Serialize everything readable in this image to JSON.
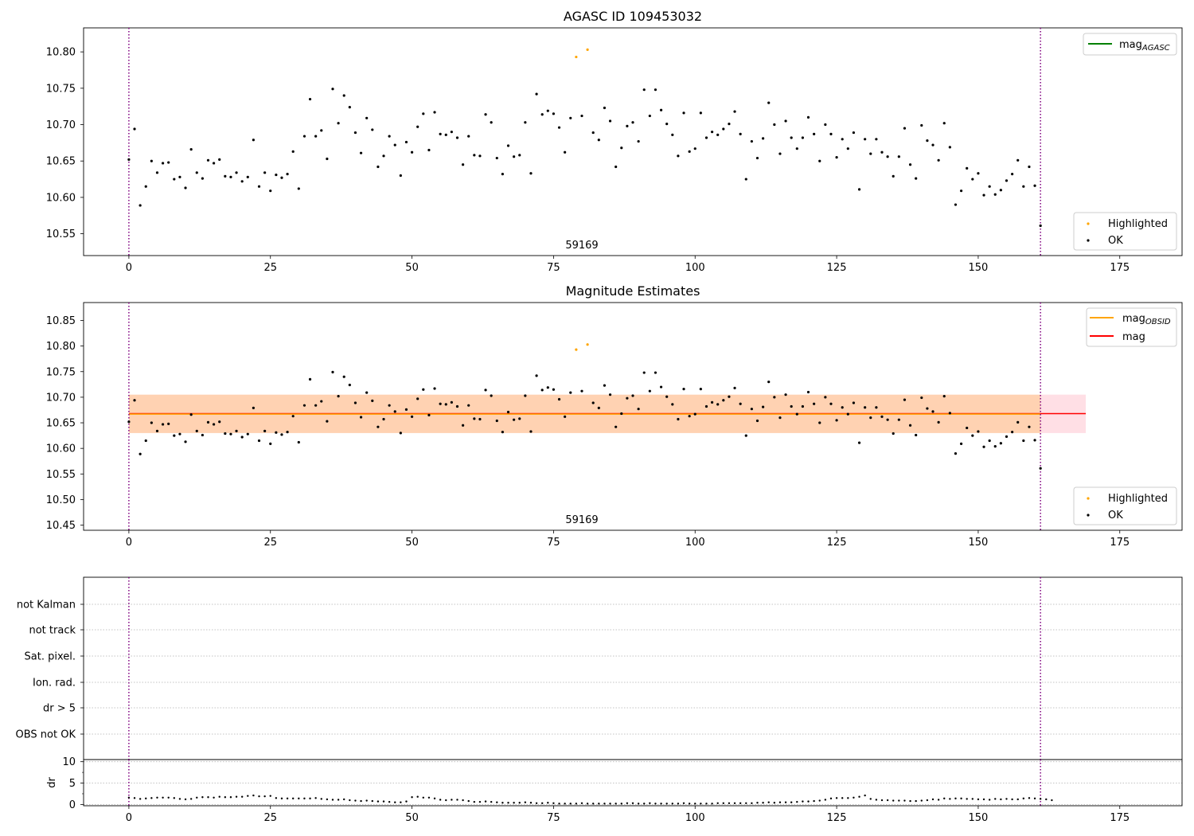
{
  "chart_data": [
    {
      "type": "scatter",
      "title": "AGASC ID 109453032",
      "annotation": "59169",
      "x_ticks": [
        0,
        25,
        50,
        75,
        100,
        125,
        150,
        175
      ],
      "y_ticks": [
        "10.55",
        "10.60",
        "10.65",
        "10.70",
        "10.75",
        "10.80"
      ],
      "xlim": [
        -8,
        186
      ],
      "ylim": [
        10.52,
        10.833
      ],
      "vlines": [
        0,
        161
      ],
      "legend_upper": "mag_AGASC",
      "legend_lower": [
        "Highlighted",
        "OK"
      ],
      "series": [
        {
          "name": "OK",
          "values": [
            10.652,
            10.694,
            10.589,
            10.615,
            10.65,
            10.634,
            10.647,
            10.648,
            10.625,
            10.628,
            10.613,
            10.666,
            10.634,
            10.626,
            10.651,
            10.647,
            10.652,
            10.629,
            10.628,
            10.634,
            10.622,
            10.628,
            10.679,
            10.615,
            10.634,
            10.609,
            10.631,
            10.627,
            10.632,
            10.663,
            10.612,
            10.684,
            10.735,
            10.684,
            10.692,
            10.653,
            10.749,
            10.702,
            10.74,
            10.724,
            10.689,
            10.661,
            10.709,
            10.693,
            10.642,
            10.657,
            10.684,
            10.672,
            10.63,
            10.676,
            10.662,
            10.697,
            10.715,
            10.665,
            10.717,
            10.687,
            10.686,
            10.69,
            10.682,
            10.645,
            10.684,
            10.658,
            10.657,
            10.714,
            10.703,
            10.654,
            10.632,
            10.671,
            10.656,
            10.658,
            10.703,
            10.633,
            10.742,
            10.714,
            10.719,
            10.715,
            10.696,
            10.662,
            10.709,
            null,
            10.712,
            null,
            10.689,
            10.679,
            10.723,
            10.705,
            10.642,
            10.668,
            10.698,
            10.703,
            10.677,
            10.748,
            10.712,
            10.748,
            10.72,
            10.701,
            10.686,
            10.657,
            10.716,
            10.663,
            10.667,
            10.716,
            10.682,
            10.69,
            10.686,
            10.694,
            10.701,
            10.718,
            10.687,
            10.625,
            10.677,
            10.654,
            10.681,
            10.73,
            10.7,
            10.66,
            10.705,
            10.682,
            10.667,
            10.682,
            10.71,
            10.687,
            10.65,
            10.7,
            10.687,
            10.655,
            10.68,
            10.667,
            10.689,
            10.611,
            10.68,
            10.66,
            10.68,
            10.662,
            10.656,
            10.629,
            10.656,
            10.695,
            10.645,
            10.626,
            10.699,
            10.678,
            10.672,
            10.651,
            10.702,
            10.669,
            10.59,
            10.609,
            10.64,
            10.625,
            10.633,
            10.603,
            10.615,
            10.604,
            10.61,
            10.623,
            10.632,
            10.651,
            10.615,
            10.642,
            10.616,
            10.561
          ]
        },
        {
          "name": "Highlighted",
          "points": [
            [
              79,
              10.793
            ],
            [
              81,
              10.803
            ]
          ]
        }
      ]
    },
    {
      "type": "scatter",
      "title": "Magnitude Estimates",
      "annotation": "59169",
      "x_ticks": [
        0,
        25,
        50,
        75,
        100,
        125,
        150,
        175
      ],
      "y_ticks": [
        "10.45",
        "10.50",
        "10.55",
        "10.60",
        "10.65",
        "10.70",
        "10.75",
        "10.80",
        "10.85"
      ],
      "xlim": [
        -8,
        186
      ],
      "ylim": [
        10.44,
        10.885
      ],
      "vlines": [
        0,
        161
      ],
      "mag_line": 10.668,
      "mag_obsid_line": 10.667,
      "band_outer": [
        10.63,
        10.705
      ],
      "band_inner": [
        10.63,
        10.705
      ],
      "band_outer_xlim": [
        0,
        169
      ],
      "band_inner_xlim": [
        0,
        161
      ],
      "legend_upper": [
        "mag_OBSID",
        "mag"
      ],
      "legend_lower": [
        "Highlighted",
        "OK"
      ],
      "colors": {
        "mag": "#ff0000",
        "mag_obsid": "#ffa500",
        "band_outer": "#ffc0cb",
        "band_inner": "#ffa500"
      }
    },
    {
      "type": "flags",
      "y_labels": [
        "not Kalman",
        "not track",
        "Sat. pixel.",
        "Ion. rad.",
        "dr > 5",
        "OBS not OK"
      ],
      "vlines": [
        0,
        161
      ]
    },
    {
      "type": "scatter",
      "ylabel": "dr",
      "x_ticks": [
        0,
        25,
        50,
        75,
        100,
        125,
        150,
        175
      ],
      "y_ticks": [
        "0",
        "5",
        "10"
      ],
      "xlim": [
        -8,
        186
      ],
      "ylim": [
        -0.3,
        10.5
      ],
      "vlines": [
        0,
        161
      ],
      "values": [
        1.6,
        1.5,
        1.3,
        1.4,
        1.5,
        1.6,
        1.6,
        1.6,
        1.5,
        1.3,
        1.2,
        1.3,
        1.6,
        1.7,
        1.7,
        1.6,
        1.8,
        1.7,
        1.7,
        1.8,
        1.8,
        2.0,
        2.1,
        1.9,
        1.9,
        2.0,
        1.5,
        1.4,
        1.4,
        1.4,
        1.4,
        1.4,
        1.4,
        1.5,
        1.3,
        1.2,
        1.1,
        1.1,
        1.2,
        1.0,
        0.9,
        0.8,
        0.9,
        0.8,
        0.7,
        0.7,
        0.6,
        0.5,
        0.5,
        0.7,
        1.7,
        1.8,
        1.6,
        1.6,
        1.4,
        1.1,
        1.0,
        1.1,
        1.1,
        1.0,
        0.8,
        0.6,
        0.6,
        0.7,
        0.6,
        0.5,
        0.4,
        0.4,
        0.4,
        0.4,
        0.5,
        0.4,
        0.3,
        0.3,
        0.4,
        0.3,
        0.2,
        0.2,
        0.2,
        0.2,
        0.3,
        0.2,
        0.2,
        0.2,
        0.2,
        0.2,
        0.2,
        0.2,
        0.3,
        0.3,
        0.2,
        0.2,
        0.3,
        0.2,
        0.2,
        0.2,
        0.2,
        0.2,
        0.3,
        0.2,
        0.2,
        0.2,
        0.2,
        0.2,
        0.3,
        0.3,
        0.3,
        0.3,
        0.3,
        0.3,
        0.3,
        0.4,
        0.4,
        0.5,
        0.4,
        0.5,
        0.5,
        0.5,
        0.6,
        0.7,
        0.7,
        0.8,
        0.9,
        1.1,
        1.4,
        1.5,
        1.5,
        1.5,
        1.6,
        1.8,
        2.1,
        1.3,
        1.1,
        1.0,
        1.0,
        0.9,
        0.9,
        0.9,
        0.8,
        0.8,
        0.9,
        1.0,
        1.2,
        1.1,
        1.4,
        1.3,
        1.4,
        1.4,
        1.3,
        1.3,
        1.2,
        1.2,
        1.1,
        1.3,
        1.2,
        1.3,
        1.2,
        1.2,
        1.4,
        1.5,
        1.4,
        1.3,
        1.2,
        1.0
      ]
    }
  ]
}
